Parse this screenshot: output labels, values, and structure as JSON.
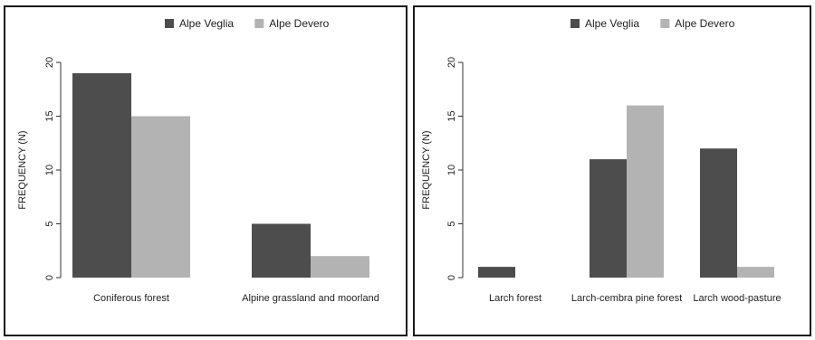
{
  "chart_data": [
    {
      "type": "bar",
      "categories": [
        "Coniferous forest",
        "Alpine grassland and moorland"
      ],
      "series": [
        {
          "name": "Alpe Veglia",
          "values": [
            19,
            5
          ],
          "color": "#4d4d4d"
        },
        {
          "name": "Alpe Devero",
          "values": [
            15,
            2
          ],
          "color": "#b3b3b3"
        }
      ],
      "ylabel": "FREQUENCY (N)",
      "ylim": [
        0,
        20
      ],
      "yticks": [
        0,
        5,
        10,
        15,
        20
      ],
      "legend": "top-center"
    },
    {
      "type": "bar",
      "categories": [
        "Larch forest",
        "Larch-cembra pine forest",
        "Larch wood-pasture"
      ],
      "series": [
        {
          "name": "Alpe Veglia",
          "values": [
            1,
            11,
            12
          ],
          "color": "#4d4d4d"
        },
        {
          "name": "Alpe Devero",
          "values": [
            0,
            16,
            1
          ],
          "color": "#b3b3b3"
        }
      ],
      "ylabel": "FREQUENCY (N)",
      "ylim": [
        0,
        20
      ],
      "yticks": [
        0,
        5,
        10,
        15,
        20
      ],
      "legend": "top-center"
    }
  ]
}
